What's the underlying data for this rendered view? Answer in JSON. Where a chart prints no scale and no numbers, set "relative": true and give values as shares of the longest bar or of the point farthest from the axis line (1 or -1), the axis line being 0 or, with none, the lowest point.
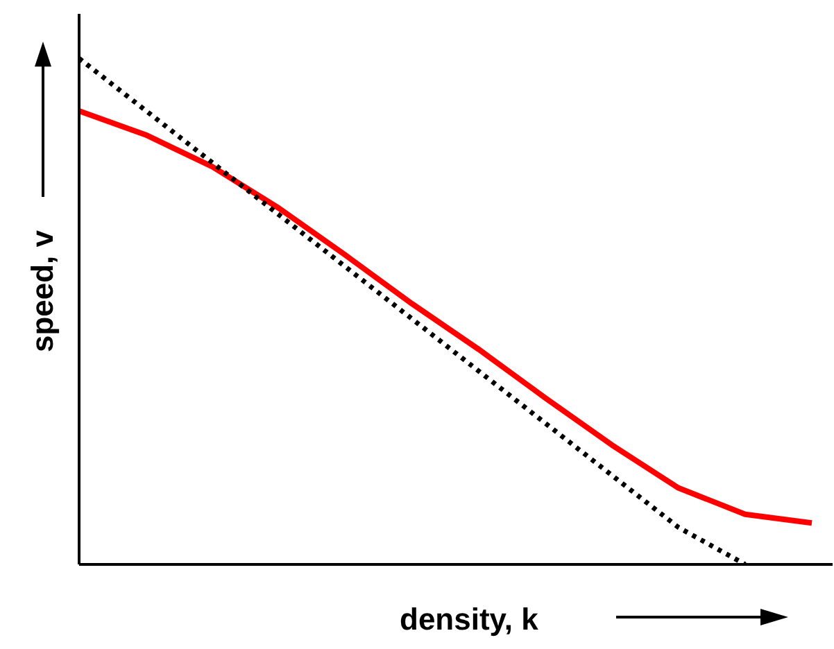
{
  "chart_data": {
    "type": "line",
    "xlabel": "density, k",
    "ylabel": "speed, v",
    "relative": true,
    "categories": [
      null,
      null,
      null,
      null,
      null,
      null,
      null,
      null,
      null,
      null,
      null,
      null
    ],
    "series": [
      {
        "color": "#ff0000",
        "line_style": "solid",
        "values": [
          0.896,
          0.849,
          0.786,
          0.704,
          0.611,
          0.515,
          0.425,
          0.329,
          0.236,
          0.151,
          0.099,
          0.082
        ]
      },
      {
        "color": "#000000",
        "line_style": "dotted",
        "values": [
          1.0,
          0.897,
          0.794,
          0.691,
          0.588,
          0.485,
          0.382,
          0.279,
          0.176,
          0.073,
          0.0,
          null
        ]
      }
    ],
    "marker": "none",
    "grid": false,
    "legend": false
  }
}
